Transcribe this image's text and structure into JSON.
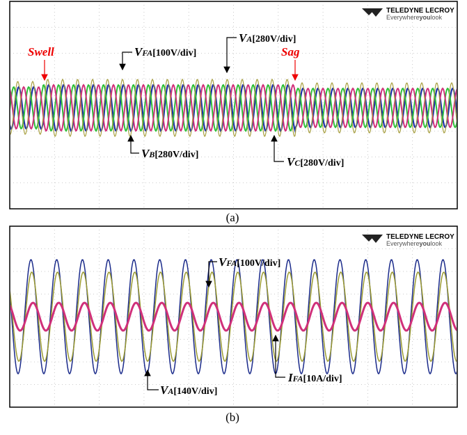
{
  "panels": [
    {
      "logo": {
        "brand": "TELEDYNE LECROY",
        "tagline_start": "Everywhere",
        "tagline_bold": "you",
        "tagline_end": "look"
      },
      "events": [
        "Swell",
        "Sag"
      ],
      "labels": [
        {
          "symbol": "V",
          "subscript": "FA",
          "scale": "[100V/div]"
        },
        {
          "symbol": "V",
          "subscript": "A",
          "scale": "[280V/div]"
        },
        {
          "symbol": "V",
          "subscript": "B",
          "scale": "[280V/div]"
        },
        {
          "symbol": "V",
          "subscript": "C",
          "scale": "[280V/div]"
        }
      ],
      "caption": "(a)"
    },
    {
      "logo": {
        "brand": "TELEDYNE LECROY",
        "tagline_start": "Everywhere",
        "tagline_bold": "you",
        "tagline_end": "look"
      },
      "labels": [
        {
          "symbol": "V",
          "subscript": "FA",
          "scale": "[100V/div]"
        },
        {
          "symbol": "V",
          "subscript": "A",
          "scale": "[140V/div]"
        },
        {
          "symbol": "I",
          "subscript": "FA",
          "scale": "[10A/div]"
        }
      ],
      "caption": "(b)"
    }
  ]
}
